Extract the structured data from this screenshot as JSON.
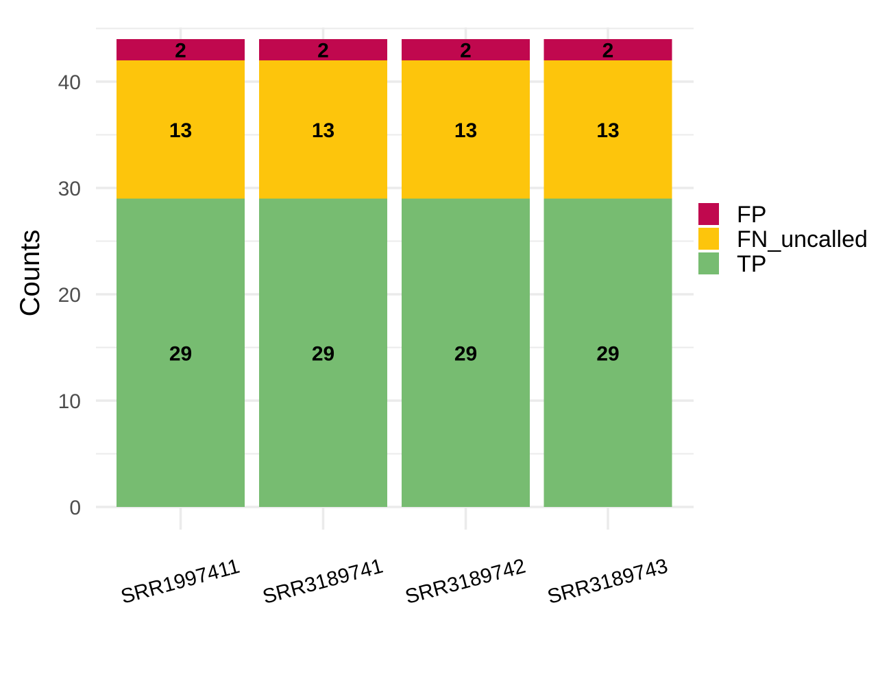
{
  "chart_data": {
    "type": "bar",
    "stacked": true,
    "title": "",
    "xlabel": "",
    "ylabel": "Counts",
    "ylim": [
      0,
      44
    ],
    "yticks": [
      0,
      10,
      20,
      30,
      40
    ],
    "grid": true,
    "legend_position": "right",
    "categories": [
      "SRR1997411",
      "SRR3189741",
      "SRR3189742",
      "SRR3189743"
    ],
    "series": [
      {
        "name": "TP",
        "color": "#77bc71",
        "values": [
          29,
          29,
          29,
          29
        ]
      },
      {
        "name": "FN_uncalled",
        "color": "#fdc50c",
        "values": [
          13,
          13,
          13,
          13
        ]
      },
      {
        "name": "FP",
        "color": "#c0084e",
        "values": [
          2,
          2,
          2,
          2
        ]
      }
    ],
    "legend_order": [
      "FP",
      "FN_uncalled",
      "TP"
    ]
  }
}
